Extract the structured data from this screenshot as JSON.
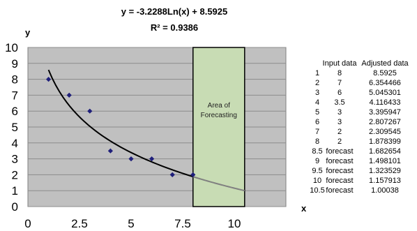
{
  "chart_data": {
    "type": "scatter",
    "equation": "y = -3.2288Ln(x) + 8.5925",
    "r_squared": "R² = 0.9386",
    "xlabel": "x",
    "ylabel": "y",
    "xlim": [
      0,
      12.5
    ],
    "ylim": [
      0,
      10
    ],
    "x_ticks": [
      "0",
      "2.5",
      "5",
      "7.5",
      "10"
    ],
    "x_tick_values": [
      0,
      2.5,
      5,
      7.5,
      10
    ],
    "y_ticks": [
      "0",
      "1",
      "2",
      "3",
      "4",
      "5",
      "6",
      "7",
      "8",
      "9",
      "10"
    ],
    "y_tick_values": [
      0,
      1,
      2,
      3,
      4,
      5,
      6,
      7,
      8,
      9,
      10
    ],
    "grid": true,
    "series": [
      {
        "x": [
          1,
          2,
          3,
          4,
          5,
          6,
          7,
          8
        ],
        "values": [
          8,
          7,
          6,
          3.5,
          3,
          3,
          2,
          2
        ]
      }
    ],
    "trendline": {
      "fit": "log",
      "a": -3.2288,
      "b": 8.5925,
      "x_start": 1,
      "x_split": 8,
      "x_end": 10.5,
      "color": "#000000",
      "forecast_color": "#808080"
    },
    "forecast_region": {
      "x_start": 8,
      "x_end": 10.5,
      "label": [
        "Area of",
        "Forecasting"
      ],
      "color": "#c8dcb4"
    },
    "marker_color": "#1f1f7a",
    "plot_background": "#c0c0c0",
    "table": {
      "headers": [
        "Input data",
        "Adjusted data"
      ],
      "rows": [
        [
          "1",
          "8",
          "8.5925"
        ],
        [
          "2",
          "7",
          "6.354466"
        ],
        [
          "3",
          "6",
          "5.045301"
        ],
        [
          "4",
          "3.5",
          "4.116433"
        ],
        [
          "5",
          "3",
          "3.395947"
        ],
        [
          "6",
          "3",
          "2.807267"
        ],
        [
          "7",
          "2",
          "2.309545"
        ],
        [
          "8",
          "2",
          "1.878399"
        ],
        [
          "8.5",
          "forecast",
          "1.682654"
        ],
        [
          "9",
          "forecast",
          "1.498101"
        ],
        [
          "9.5",
          "forecast",
          "1.323529"
        ],
        [
          "10",
          "forecast",
          "1.157913"
        ],
        [
          "10.5",
          "forecast",
          "1.00038"
        ]
      ]
    }
  }
}
